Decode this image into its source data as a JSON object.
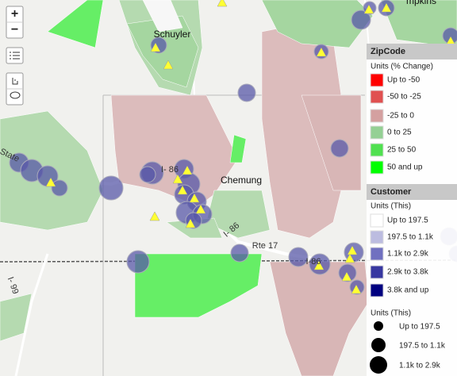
{
  "map_labels": {
    "schuyler": "Schuyler",
    "chemung": "Chemung",
    "tompkins": "mpkins",
    "rte_17": "Rte 17",
    "i86_a": "I- 86",
    "i86_b": "I-86",
    "i86_c": "I- 86",
    "state": "State",
    "i99": "I- 99"
  },
  "controls": {
    "zoom_in": "+",
    "zoom_out": "−"
  },
  "legend": {
    "zipcode": {
      "title": "ZipCode",
      "units": "Units (% Change)",
      "items": [
        {
          "label": "Up to -50",
          "color": "#ff0000"
        },
        {
          "label": "-50 to -25",
          "color": "#e05050"
        },
        {
          "label": "-25 to 0",
          "color": "#d4a0a0"
        },
        {
          "label": "0 to 25",
          "color": "#94d094"
        },
        {
          "label": "25 to 50",
          "color": "#50e050"
        },
        {
          "label": "50 and up",
          "color": "#00ff00"
        }
      ]
    },
    "customer": {
      "title": "Customer",
      "units": "Units (This)",
      "items": [
        {
          "label": "Up to 197.5",
          "color": "#ffffff"
        },
        {
          "label": "197.5 to 1.1k",
          "color": "#bcbce0"
        },
        {
          "label": "1.1k to 2.9k",
          "color": "#7070c0"
        },
        {
          "label": "2.9k to 3.8k",
          "color": "#3838a0"
        },
        {
          "label": "3.8k and up",
          "color": "#000080"
        }
      ]
    },
    "size": {
      "units": "Units (This)",
      "items": [
        {
          "label": "Up to 197.5"
        },
        {
          "label": "197.5 to 1.1k"
        },
        {
          "label": "1.1k to 2.9k"
        }
      ]
    }
  }
}
